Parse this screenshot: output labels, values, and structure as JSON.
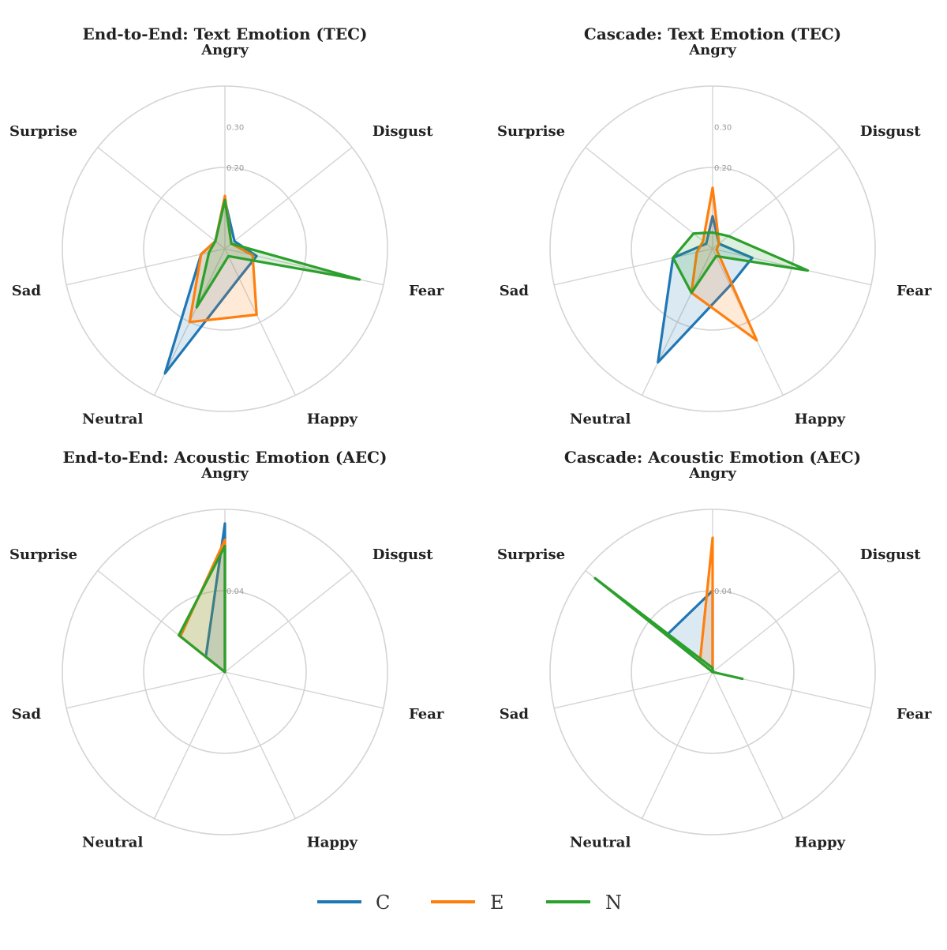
{
  "chart_data": [
    {
      "type": "radar",
      "title": "End-to-End: Text Emotion (TEC)",
      "categories": [
        "Angry",
        "Disgust",
        "Fear",
        "Happy",
        "Neutral",
        "Sad",
        "Surprise"
      ],
      "rmax": 0.4,
      "rticks": [
        0.2,
        0.3
      ],
      "rtick_labels": [
        "0.20",
        "0.30"
      ],
      "grid": true,
      "series": [
        {
          "name": "C",
          "values": [
            0.12,
            0.03,
            0.08,
            0.08,
            0.34,
            0.06,
            0.03
          ]
        },
        {
          "name": "E",
          "values": [
            0.13,
            0.02,
            0.07,
            0.18,
            0.2,
            0.06,
            0.03
          ]
        },
        {
          "name": "N",
          "values": [
            0.12,
            0.02,
            0.34,
            0.02,
            0.16,
            0.04,
            0.03
          ]
        }
      ]
    },
    {
      "type": "radar",
      "title": "Cascade: Text Emotion (TEC)",
      "categories": [
        "Angry",
        "Disgust",
        "Fear",
        "Happy",
        "Neutral",
        "Sad",
        "Surprise"
      ],
      "rmax": 0.4,
      "rticks": [
        0.2,
        0.3
      ],
      "rtick_labels": [
        "0.20",
        "0.30"
      ],
      "grid": true,
      "series": [
        {
          "name": "C",
          "values": [
            0.08,
            0.02,
            0.1,
            0.1,
            0.31,
            0.1,
            0.02
          ]
        },
        {
          "name": "E",
          "values": [
            0.15,
            0.02,
            0.01,
            0.25,
            0.12,
            0.04,
            0.03
          ]
        },
        {
          "name": "N",
          "values": [
            0.04,
            0.05,
            0.24,
            0.02,
            0.12,
            0.1,
            0.06
          ]
        }
      ]
    },
    {
      "type": "radar",
      "title": "End-to-End: Acoustic Emotion (AEC)",
      "categories": [
        "Angry",
        "Disgust",
        "Fear",
        "Happy",
        "Neutral",
        "Sad",
        "Surprise"
      ],
      "rmax": 0.08,
      "rticks": [
        0.04
      ],
      "rtick_labels": [
        "0.04"
      ],
      "grid": true,
      "series": [
        {
          "name": "C",
          "values": [
            0.073,
            0,
            0,
            0,
            0,
            0,
            0.012
          ]
        },
        {
          "name": "E",
          "values": [
            0.065,
            0,
            0,
            0,
            0,
            0,
            0.028
          ]
        },
        {
          "name": "N",
          "values": [
            0.062,
            0,
            0,
            0,
            0,
            0,
            0.029
          ]
        }
      ]
    },
    {
      "type": "radar",
      "title": "Cascade: Acoustic Emotion (AEC)",
      "categories": [
        "Angry",
        "Disgust",
        "Fear",
        "Happy",
        "Neutral",
        "Sad",
        "Surprise"
      ],
      "rmax": 0.08,
      "rticks": [
        0.04
      ],
      "rtick_labels": [
        "0.04"
      ],
      "grid": true,
      "series": [
        {
          "name": "C",
          "values": [
            0.04,
            0,
            0.002,
            0,
            0,
            0,
            0.029
          ]
        },
        {
          "name": "E",
          "values": [
            0.066,
            0,
            0.002,
            0,
            0,
            0,
            0.008
          ]
        },
        {
          "name": "N",
          "values": [
            0.002,
            0,
            0.015,
            0,
            0,
            0,
            0.074
          ]
        }
      ]
    }
  ],
  "legend": {
    "placement": "bottom-center",
    "items": [
      {
        "label": "C",
        "color": "#1f77b4"
      },
      {
        "label": "E",
        "color": "#ff7f0e"
      },
      {
        "label": "N",
        "color": "#2ca02c"
      }
    ]
  }
}
